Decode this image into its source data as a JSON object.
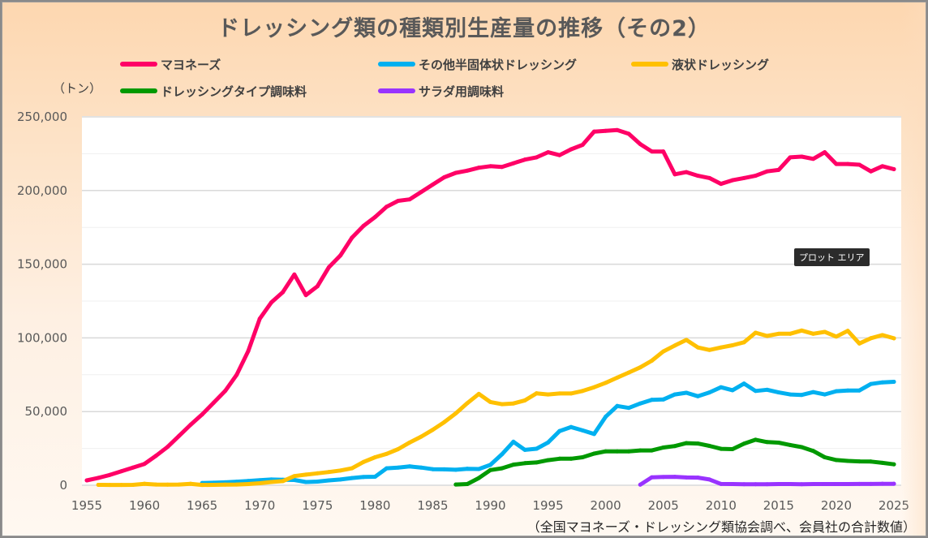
{
  "chart_data": {
    "type": "line",
    "title": "ドレッシング類の種類別生産量の推移（その2）",
    "ylabel": "（トン）",
    "xlabel": "",
    "source_note": "（全国マヨネーズ・ドレッシング類協会調べ、会員社の合計数値）",
    "ylim": [
      0,
      250000
    ],
    "xlim": [
      1955,
      2025
    ],
    "grid": true,
    "legend_position": "top",
    "y_ticks": [
      "0",
      "50,000",
      "100,000",
      "150,000",
      "200,000",
      "250,000"
    ],
    "y_tick_values": [
      0,
      50000,
      100000,
      150000,
      200000,
      250000
    ],
    "x_ticks": [
      "1955",
      "1960",
      "1965",
      "1970",
      "1975",
      "1980",
      "1985",
      "1990",
      "1995",
      "2000",
      "2005",
      "2010",
      "2015",
      "2020",
      "2025"
    ],
    "x_tick_values": [
      1955,
      1960,
      1965,
      1970,
      1975,
      1980,
      1985,
      1990,
      1995,
      2000,
      2005,
      2010,
      2015,
      2020,
      2025
    ],
    "series": [
      {
        "name": "マヨネーズ",
        "color": "#ff0066",
        "start_year": 1955,
        "values": [
          3300,
          5000,
          7000,
          9500,
          12000,
          14500,
          20000,
          26000,
          33500,
          41000,
          48000,
          56000,
          64000,
          75000,
          91000,
          113000,
          124000,
          131000,
          143000,
          129000,
          135000,
          148000,
          156000,
          168000,
          176000,
          182000,
          189000,
          193000,
          194000,
          199000,
          204000,
          209000,
          212000,
          213500,
          215500,
          216500,
          216000,
          218500,
          221000,
          222500,
          226000,
          224000,
          228000,
          231000,
          240000,
          240500,
          241000,
          238500,
          231500,
          226500,
          226500,
          211000,
          212500,
          210000,
          208500,
          204500,
          207000,
          208500,
          210000,
          213000,
          214000,
          222500,
          223000,
          221500,
          226000,
          218000,
          218000,
          217500,
          213000,
          216500,
          214500
        ]
      },
      {
        "name": "その他半固体状ドレッシング",
        "color": "#00b0f0",
        "start_year": 1965,
        "values": [
          1500,
          1700,
          2000,
          2400,
          2900,
          3400,
          3900,
          3700,
          3600,
          2200,
          2500,
          3300,
          3900,
          4900,
          5600,
          5800,
          11500,
          12000,
          12800,
          12000,
          10900,
          10800,
          10500,
          11200,
          11000,
          13800,
          21000,
          29500,
          24000,
          24800,
          29000,
          36800,
          39500,
          37200,
          34800,
          46500,
          53800,
          52500,
          55500,
          58000,
          58200,
          61600,
          62800,
          60400,
          63000,
          66500,
          64500,
          69000,
          64000,
          64800,
          63000,
          61600,
          61300,
          63200,
          61600,
          63800,
          64300,
          64300,
          68700,
          69800,
          70200
        ]
      },
      {
        "name": "液状ドレッシング",
        "color": "#ffc000",
        "start_year": 1956,
        "values": [
          300,
          200,
          200,
          300,
          1000,
          500,
          400,
          500,
          1000,
          200,
          300,
          400,
          500,
          800,
          1400,
          2200,
          2800,
          6200,
          7200,
          8100,
          9000,
          10000,
          11500,
          15800,
          19000,
          21300,
          24500,
          29000,
          33000,
          37600,
          42800,
          48800,
          55700,
          62000,
          56500,
          55000,
          55500,
          57600,
          62400,
          61600,
          62300,
          62300,
          64000,
          66500,
          69500,
          73000,
          76500,
          80000,
          84500,
          90800,
          94800,
          98600,
          93500,
          91800,
          93500,
          95000,
          97000,
          103500,
          101300,
          102800,
          102800,
          105000,
          102800,
          104100,
          100900,
          104800,
          96200,
          99800,
          101900,
          99700
        ]
      },
      {
        "name": "ドレッシングタイプ調味料",
        "color": "#009900",
        "start_year": 1987,
        "values": [
          500,
          800,
          4900,
          10300,
          11500,
          14000,
          15000,
          15500,
          17000,
          18000,
          18000,
          19000,
          21500,
          23000,
          23000,
          23000,
          23600,
          23600,
          25600,
          26600,
          28600,
          28300,
          26700,
          24700,
          24500,
          28200,
          30900,
          29300,
          28900,
          27300,
          25900,
          23300,
          19000,
          17100,
          16500,
          16200,
          16100,
          15200,
          14200
        ]
      },
      {
        "name": "サラダ用調味料",
        "color": "#9933ff",
        "start_year": 2003,
        "values": [
          400,
          5400,
          5600,
          5700,
          5300,
          5200,
          3900,
          900,
          800,
          700,
          700,
          700,
          800,
          800,
          700,
          800,
          800,
          800,
          800,
          900,
          900,
          1000,
          1000
        ]
      }
    ]
  },
  "overlay": {
    "tooltip_text": "プロット エリア"
  }
}
